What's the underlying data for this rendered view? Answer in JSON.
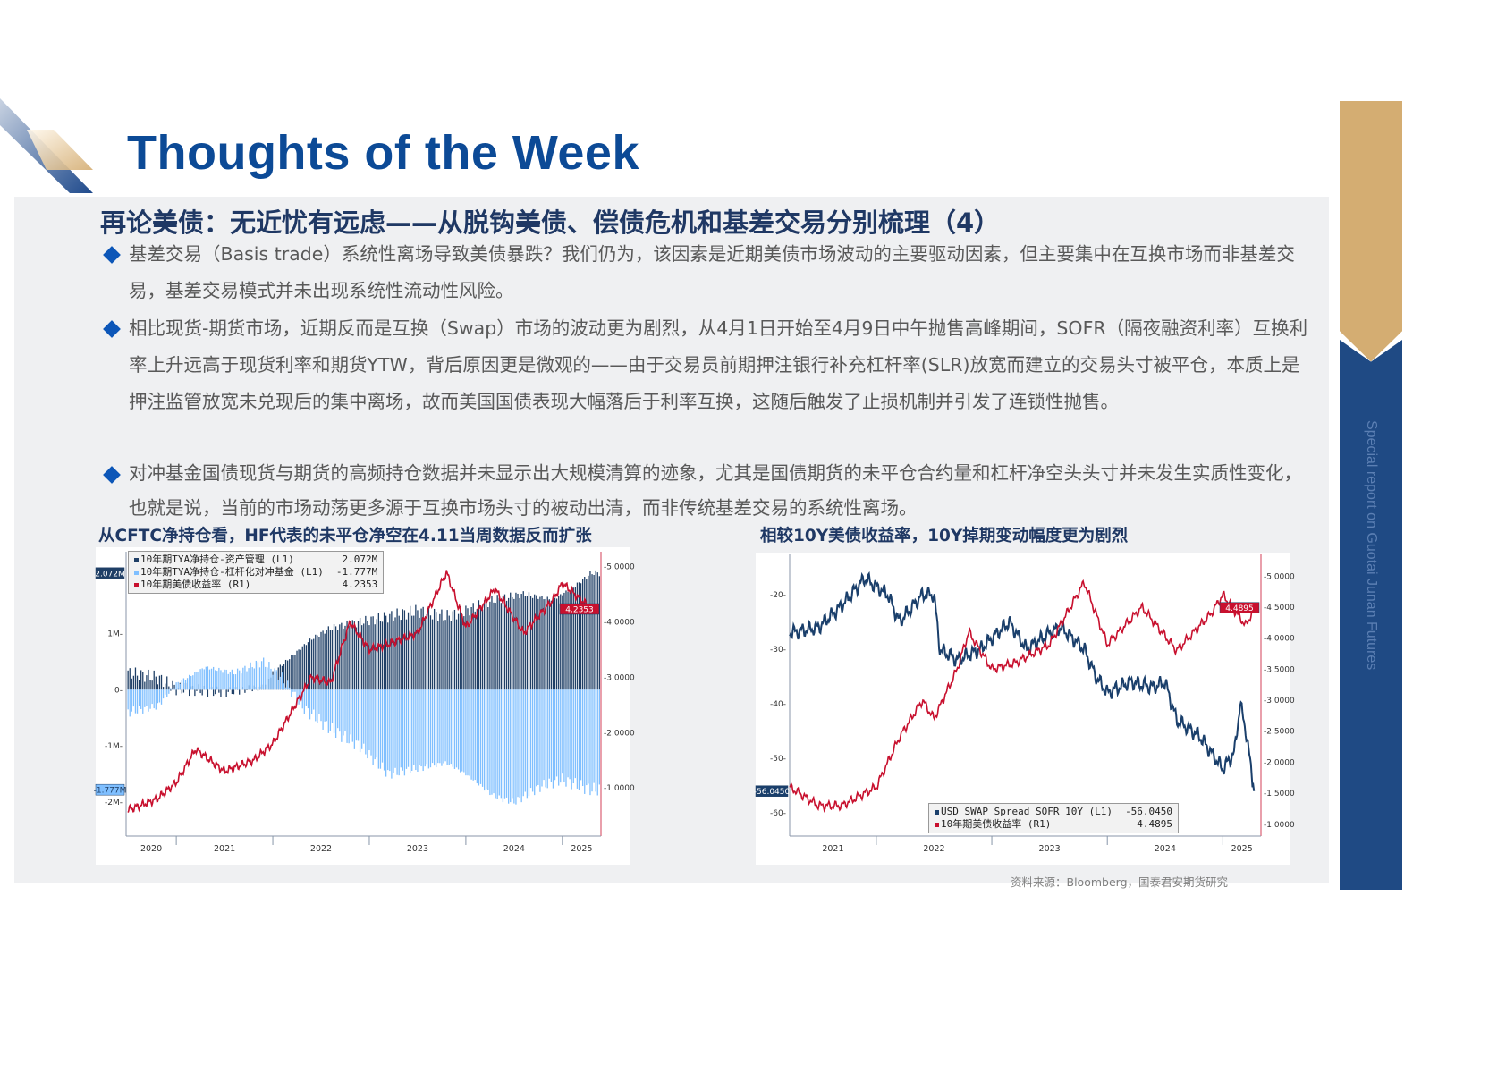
{
  "header": {
    "title": "Thoughts of the Week"
  },
  "subtitle": "再论美债：无近忧有远虑——从脱钩美债、偿债危机和基差交易分别梳理（4）",
  "bullets": [
    "基差交易（Basis trade）系统性离场导致美债暴跌？我们仍为，该因素是近期美债市场波动的主要驱动因素，但主要集中在互换市场而非基差交易，基差交易模式并未出现系统性流动性风险。",
    "相比现货-期货市场，近期反而是互换（Swap）市场的波动更为剧烈，从4月1日开始至4月9日中午抛售高峰期间，SOFR（隔夜融资利率）互换利率上升远高于现货利率和期货YTW，背后原因更是微观的——由于交易员前期押注银行补充杠杆率(SLR)放宽而建立的交易头寸被平仓，本质上是押注监管放宽未兑现后的集中离场，故而美国国债表现大幅落后于利率互换，这随后触发了止损机制并引发了连锁性抛售。",
    "对冲基金国债现货与期货的高频持仓数据并未显示出大规模清算的迹象，尤其是国债期货的未平仓合约量和杠杆净空头头寸并未发生实质性变化，也就是说，当前的市场动荡更多源于互换市场头寸的被动出清，而非传统基差交易的系统性离场。"
  ],
  "side_band": {
    "text": "Special report on Guotai Junan Futures",
    "colors": {
      "gold": "#d4ad72",
      "blue": "#1f4a84"
    }
  },
  "source": "资料来源：Bloomberg，国泰君安期货研究",
  "chart_data": [
    {
      "type": "bar+line",
      "title": "从CFTC净持仓看，HF代表的未平仓净空在4.11当周数据反而扩张",
      "x_ticks": [
        "2020",
        "2021",
        "2022",
        "2023",
        "2024",
        "2025"
      ],
      "y_left": {
        "ticks": [
          "-2M",
          "-1M",
          "0",
          "1M"
        ],
        "range": [
          -2.6,
          2.45
        ],
        "unit": "M"
      },
      "y_right": {
        "ticks": [
          "1.0000",
          "2.0000",
          "3.0000",
          "4.0000",
          "5.0000"
        ],
        "range": [
          0.13,
          5.27
        ]
      },
      "series": [
        {
          "name": "10年期TYA净持仓-资产管理 (L1)",
          "last": "2.072M",
          "color": "#1f3f66",
          "axis": "left",
          "kind": "bar",
          "points": [
            [
              2020.5,
              0.3
            ],
            [
              2020.8,
              0.22
            ],
            [
              2021.0,
              0.02
            ],
            [
              2021.5,
              -0.05
            ],
            [
              2021.9,
              0.05
            ],
            [
              2022.0,
              0.3
            ],
            [
              2022.2,
              0.6
            ],
            [
              2022.4,
              0.9
            ],
            [
              2022.6,
              1.1
            ],
            [
              2022.9,
              1.2
            ],
            [
              2023.2,
              1.3
            ],
            [
              2023.5,
              1.4
            ],
            [
              2023.8,
              1.3
            ],
            [
              2024.0,
              1.4
            ],
            [
              2024.3,
              1.6
            ],
            [
              2024.6,
              1.7
            ],
            [
              2024.9,
              1.6
            ],
            [
              2025.1,
              1.8
            ],
            [
              2025.3,
              2.072
            ]
          ]
        },
        {
          "name": "10年期TYA净持仓-杠杆化对冲基金 (L1)",
          "last": "-1.777M",
          "color": "#7fbfff",
          "axis": "left",
          "kind": "bar",
          "points": [
            [
              2020.5,
              -0.4
            ],
            [
              2020.8,
              -0.3
            ],
            [
              2021.0,
              0.1
            ],
            [
              2021.3,
              0.4
            ],
            [
              2021.6,
              0.3
            ],
            [
              2021.9,
              0.5
            ],
            [
              2022.1,
              0.2
            ],
            [
              2022.3,
              -0.3
            ],
            [
              2022.6,
              -0.7
            ],
            [
              2022.9,
              -1.0
            ],
            [
              2023.2,
              -1.5
            ],
            [
              2023.5,
              -1.4
            ],
            [
              2023.8,
              -1.3
            ],
            [
              2024.0,
              -1.5
            ],
            [
              2024.3,
              -1.9
            ],
            [
              2024.5,
              -2.0
            ],
            [
              2024.8,
              -1.7
            ],
            [
              2025.0,
              -1.6
            ],
            [
              2025.3,
              -1.777
            ]
          ]
        },
        {
          "name": "10年期美债收益率 (R1)",
          "last": "4.2353",
          "color": "#c8102e",
          "axis": "right",
          "kind": "line",
          "points": [
            [
              2020.5,
              0.6
            ],
            [
              2020.8,
              0.8
            ],
            [
              2021.0,
              1.1
            ],
            [
              2021.2,
              1.7
            ],
            [
              2021.5,
              1.3
            ],
            [
              2021.8,
              1.5
            ],
            [
              2022.0,
              1.8
            ],
            [
              2022.2,
              2.4
            ],
            [
              2022.4,
              3.0
            ],
            [
              2022.6,
              2.9
            ],
            [
              2022.8,
              4.0
            ],
            [
              2023.0,
              3.5
            ],
            [
              2023.2,
              3.6
            ],
            [
              2023.5,
              3.8
            ],
            [
              2023.8,
              4.9
            ],
            [
              2024.0,
              3.9
            ],
            [
              2024.3,
              4.6
            ],
            [
              2024.6,
              3.8
            ],
            [
              2024.9,
              4.4
            ],
            [
              2025.0,
              4.7
            ],
            [
              2025.3,
              4.2353
            ]
          ]
        }
      ]
    },
    {
      "type": "line",
      "title": "相较10Y美债收益率，10Y掉期变动幅度更为剧烈",
      "x_ticks": [
        "2021",
        "2022",
        "2023",
        "2024",
        "2025"
      ],
      "y_left": {
        "ticks": [
          "-60",
          "-50",
          "-40",
          "-30",
          "-20"
        ],
        "range": [
          -64.3,
          -12.6
        ]
      },
      "y_right": {
        "ticks": [
          "1.0000",
          "1.5000",
          "2.0000",
          "2.5000",
          "3.0000",
          "3.5000",
          "4.0000",
          "4.5000",
          "5.0000"
        ],
        "range": [
          0.81,
          5.35
        ]
      },
      "series": [
        {
          "name": "USD SWAP Spread SOFR 10Y (L1)",
          "last": "-56.0450",
          "color": "#1a3f6b",
          "axis": "left",
          "points": [
            [
              2021.25,
              -27
            ],
            [
              2021.5,
              -26
            ],
            [
              2021.7,
              -22
            ],
            [
              2021.9,
              -17
            ],
            [
              2022.1,
              -20
            ],
            [
              2022.2,
              -25
            ],
            [
              2022.4,
              -20
            ],
            [
              2022.5,
              -20
            ],
            [
              2022.55,
              -30
            ],
            [
              2022.7,
              -32
            ],
            [
              2022.9,
              -30
            ],
            [
              2023.0,
              -28
            ],
            [
              2023.15,
              -25
            ],
            [
              2023.3,
              -30
            ],
            [
              2023.5,
              -27
            ],
            [
              2023.6,
              -26
            ],
            [
              2023.8,
              -30
            ],
            [
              2023.9,
              -35
            ],
            [
              2024.0,
              -38
            ],
            [
              2024.2,
              -36
            ],
            [
              2024.4,
              -37
            ],
            [
              2024.5,
              -36
            ],
            [
              2024.6,
              -43
            ],
            [
              2024.8,
              -46
            ],
            [
              2025.0,
              -52
            ],
            [
              2025.1,
              -49
            ],
            [
              2025.15,
              -40
            ],
            [
              2025.2,
              -45
            ],
            [
              2025.27,
              -56.045
            ]
          ]
        },
        {
          "name": "10年期美债收益率 (R1)",
          "last": "4.4895",
          "color": "#c8102e",
          "axis": "right",
          "points": [
            [
              2021.25,
              1.6
            ],
            [
              2021.5,
              1.3
            ],
            [
              2021.7,
              1.3
            ],
            [
              2021.9,
              1.5
            ],
            [
              2022.0,
              1.6
            ],
            [
              2022.2,
              2.4
            ],
            [
              2022.4,
              3.0
            ],
            [
              2022.5,
              2.7
            ],
            [
              2022.7,
              3.5
            ],
            [
              2022.8,
              4.1
            ],
            [
              2023.0,
              3.5
            ],
            [
              2023.2,
              3.6
            ],
            [
              2023.5,
              3.9
            ],
            [
              2023.8,
              4.9
            ],
            [
              2024.0,
              3.9
            ],
            [
              2024.3,
              4.5
            ],
            [
              2024.6,
              3.8
            ],
            [
              2024.9,
              4.4
            ],
            [
              2025.0,
              4.7
            ],
            [
              2025.2,
              4.2
            ],
            [
              2025.27,
              4.4895
            ]
          ]
        }
      ]
    }
  ]
}
